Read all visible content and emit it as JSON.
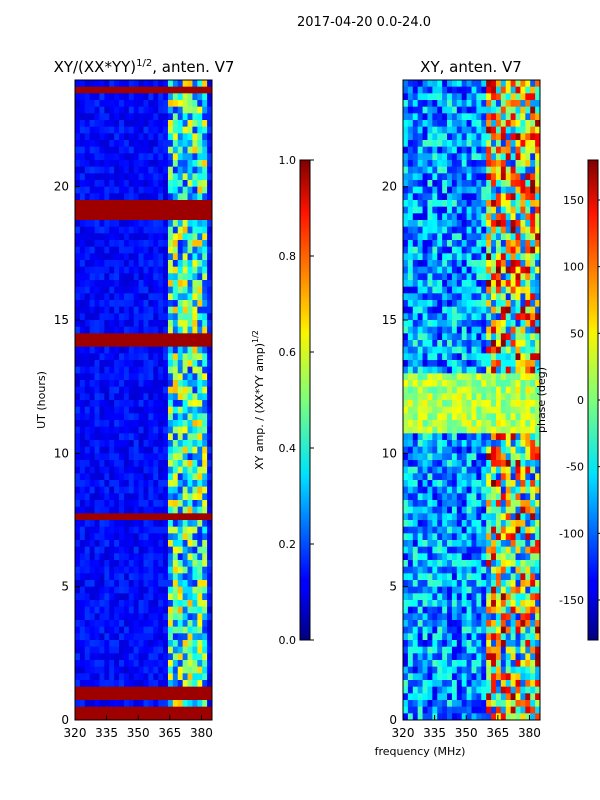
{
  "figure": {
    "suptitle": "2017-04-20 0.0-24.0"
  },
  "chart_data": [
    {
      "type": "heatmap",
      "title_main": "XY/(XX*YY)",
      "title_sup": "1/2",
      "title_tail": ", anten. V7",
      "xlabel": "",
      "ylabel": "UT (hours)",
      "xlim": [
        320,
        385
      ],
      "ylim": [
        0,
        24
      ],
      "xticks": [
        320,
        335,
        350,
        365,
        380
      ],
      "yticks": [
        0,
        5,
        10,
        15,
        20
      ],
      "colorbar": {
        "label_main": "XY amp. / (XX*YY amp)",
        "label_sup": "1/2",
        "range": [
          0.0,
          1.0
        ],
        "ticks": [
          "0.0",
          "0.2",
          "0.4",
          "0.6",
          "0.8",
          "1.0"
        ]
      },
      "saturated_bands_hours": [
        0.3,
        0.9,
        1.1,
        7.6,
        14.3,
        19.0,
        19.4,
        23.6
      ],
      "bright_channel_range_MHz": [
        363,
        383
      ]
    },
    {
      "type": "heatmap",
      "title": "XY, anten. V7",
      "xlabel": "frequency (MHz)",
      "ylabel": "",
      "xlim": [
        320,
        385
      ],
      "ylim": [
        0,
        24
      ],
      "xticks": [
        320,
        335,
        350,
        365,
        380
      ],
      "yticks": [
        0,
        5,
        10,
        15,
        20
      ],
      "colorbar": {
        "label": "phase (deg)",
        "range": [
          -180,
          180
        ],
        "ticks": [
          "-150",
          "-100",
          "-50",
          "0",
          "50",
          "100",
          "150"
        ]
      },
      "phase_band_hours": [
        10.8,
        13.0
      ]
    }
  ]
}
